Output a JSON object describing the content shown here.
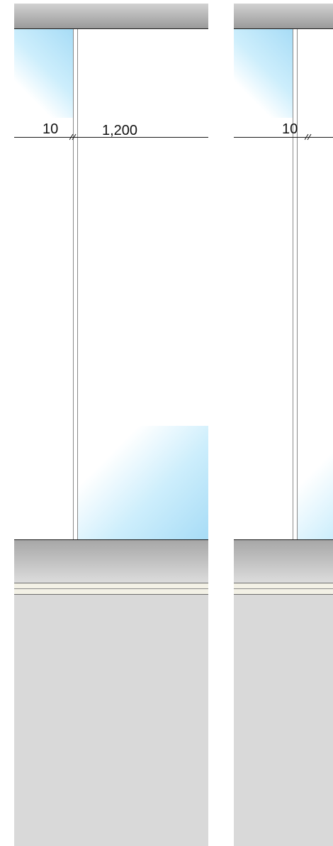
{
  "drawing": {
    "dimensions": {
      "bay_1": {
        "left_offset": "10",
        "width": "1,200"
      },
      "bay_2": {
        "left_offset": "10"
      }
    },
    "colors": {
      "glass": "#a7dcf6",
      "beam_dark": "#9a9a9a",
      "beam_light": "#d2d2d2",
      "finish_band": "#f3f1e6",
      "wall": "#d9d9d9",
      "line": "#1a1a1a"
    }
  }
}
